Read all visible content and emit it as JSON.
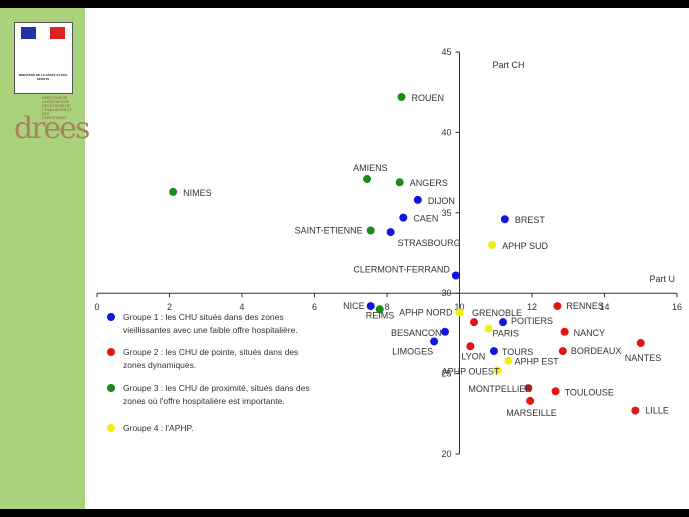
{
  "colors": {
    "groupe1": "#1515e0",
    "groupe2": "#e01515",
    "groupe3": "#1a8a1a",
    "groupe4": "#f0f010",
    "sidebar": "#a9d27a"
  },
  "logos": {
    "ministere_text": "MINISTÈRE DE LA SANTÉ ET DES SPORTS",
    "drees_word": "drees",
    "drees_small": "DIRECTION DE LA RECHERCHE DES ÉTUDES DE L'ÉVALUATION ET DES STATISTIQUES"
  },
  "chart_data": {
    "type": "scatter",
    "xlabel": "Part U",
    "ylabel": "Part CH",
    "xlim": [
      0,
      16
    ],
    "ylim": [
      20,
      45
    ],
    "axis_cross": [
      10,
      30
    ],
    "x_ticks": [
      "0",
      "2",
      "4",
      "6",
      "8",
      "10",
      "12",
      "14",
      "16"
    ],
    "y_ticks": [
      "20",
      "25",
      "30",
      "35",
      "40",
      "45"
    ],
    "grid": false,
    "legend": [
      {
        "group": "groupe1",
        "lines": [
          "Groupe 1 : les CHU situés dans des zones",
          "vieillissantes avec une faible offre hospitalière."
        ]
      },
      {
        "group": "groupe2",
        "lines": [
          "Groupe 2 : les CHU de pointe, situés dans des",
          "zones dynamiques."
        ]
      },
      {
        "group": "groupe3",
        "lines": [
          "Groupe 3 : les CHU de proximité, situés dans des",
          "zones où l'offre hospitalière est importante."
        ]
      },
      {
        "group": "groupe4",
        "lines": [
          "Groupe 4 : l'APHP."
        ]
      }
    ],
    "points": [
      {
        "label": "ROUEN",
        "group": "groupe3",
        "x": 8.4,
        "y": 42.2
      },
      {
        "label": "AMIENS",
        "group": "groupe3",
        "x": 7.45,
        "y": 37.1
      },
      {
        "label": "ANGERS",
        "group": "groupe3",
        "x": 8.35,
        "y": 36.9
      },
      {
        "label": "NIMES",
        "group": "groupe3",
        "x": 2.1,
        "y": 36.3
      },
      {
        "label": "SAINT-ETIENNE",
        "group": "groupe3",
        "x": 7.55,
        "y": 33.9
      },
      {
        "label": "REIMS",
        "group": "groupe3",
        "x": 7.8,
        "y": 29.0
      },
      {
        "label": "DIJON",
        "group": "groupe1",
        "x": 8.85,
        "y": 35.8
      },
      {
        "label": "CAEN",
        "group": "groupe1",
        "x": 8.45,
        "y": 34.7
      },
      {
        "label": "STRASBOURG",
        "group": "groupe1",
        "x": 8.1,
        "y": 33.8
      },
      {
        "label": "BREST",
        "group": "groupe1",
        "x": 11.25,
        "y": 34.6
      },
      {
        "label": "CLERMONT-FERRAND",
        "group": "groupe1",
        "x": 9.9,
        "y": 31.1
      },
      {
        "label": "NICE",
        "group": "groupe1",
        "x": 7.55,
        "y": 29.2
      },
      {
        "label": "POITIERS",
        "group": "groupe1",
        "x": 11.2,
        "y": 28.2
      },
      {
        "label": "BESANCON",
        "group": "groupe1",
        "x": 9.6,
        "y": 27.6
      },
      {
        "label": "LIMOGES",
        "group": "groupe1",
        "x": 9.3,
        "y": 27.0
      },
      {
        "label": "TOURS",
        "group": "groupe1",
        "x": 10.95,
        "y": 26.4
      },
      {
        "label": "APHP SUD",
        "group": "groupe4",
        "x": 10.9,
        "y": 33.0
      },
      {
        "label": "APHP NORD",
        "group": "groupe4",
        "x": 10.0,
        "y": 28.8
      },
      {
        "label": "PARIS",
        "group": "groupe4",
        "x": 10.8,
        "y": 27.8
      },
      {
        "label": "APHP EST",
        "group": "groupe4",
        "x": 11.35,
        "y": 25.8
      },
      {
        "label": "APHP OUEST",
        "group": "groupe4",
        "x": 11.05,
        "y": 25.2
      },
      {
        "label": "GRENOBLE",
        "group": "groupe2",
        "x": 10.4,
        "y": 28.2
      },
      {
        "label": "RENNES",
        "group": "groupe2",
        "x": 12.7,
        "y": 29.2
      },
      {
        "label": "NANCY",
        "group": "groupe2",
        "x": 12.9,
        "y": 27.6
      },
      {
        "label": "LYON",
        "group": "groupe2",
        "x": 10.3,
        "y": 26.7
      },
      {
        "label": "BORDEAUX",
        "group": "groupe2",
        "x": 12.85,
        "y": 26.4
      },
      {
        "label": "NANTES",
        "group": "groupe2",
        "x": 15.0,
        "y": 26.9
      },
      {
        "label": "MONTPELLIER",
        "group": "groupe2",
        "x": 11.9,
        "y": 24.1
      },
      {
        "label": "TOULOUSE",
        "group": "groupe2",
        "x": 12.65,
        "y": 23.9
      },
      {
        "label": "MARSEILLE",
        "group": "groupe2",
        "x": 11.95,
        "y": 23.3
      },
      {
        "label": "LILLE",
        "group": "groupe2",
        "x": 14.85,
        "y": 22.7
      }
    ]
  }
}
